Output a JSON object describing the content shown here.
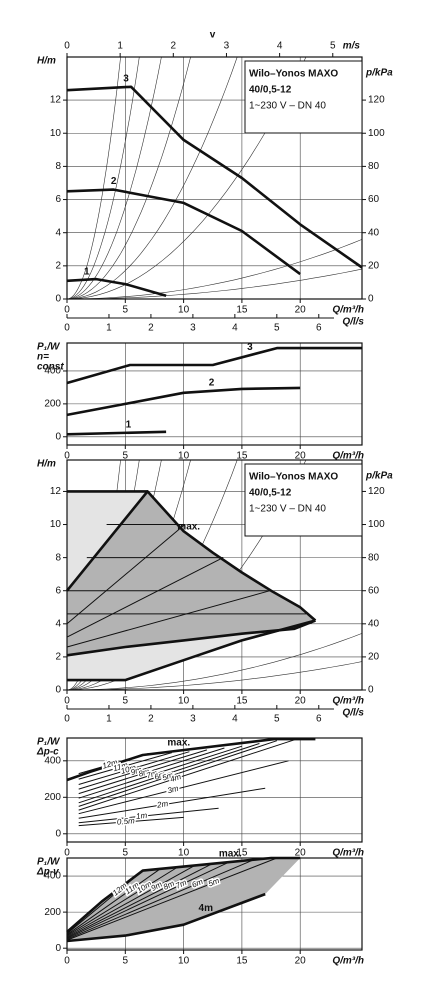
{
  "chart_data": [
    {
      "type": "line",
      "y_label": [
        "H/m"
      ],
      "y2_label": "p/kPa",
      "x_label": "Q/m³/h",
      "x2_label": "v",
      "x2_unit": "m/s",
      "x3_label": "Q/l/s",
      "info": [
        "Wilo–Yonos MAXO",
        "40/0,5-12",
        "1~230 V – DN 40"
      ],
      "xlim": [
        0,
        25.3
      ],
      "xticks": [
        0,
        5,
        10,
        15,
        20
      ],
      "ylim": [
        0,
        14.6
      ],
      "yticks": [
        0,
        2,
        4,
        6,
        8,
        10,
        12
      ],
      "y2lim": [
        0,
        146
      ],
      "y2ticks": [
        0,
        20,
        40,
        60,
        80,
        100,
        120
      ],
      "x2lim": [
        0,
        5.55
      ],
      "x2ticks": [
        0,
        1,
        2,
        3,
        4,
        5
      ],
      "x3lim": [
        0,
        7.03
      ],
      "x3ticks": [
        0,
        1,
        2,
        3,
        4,
        5,
        6
      ],
      "grid": true,
      "series": [
        {
          "name": "1",
          "color": "#111111",
          "style": "thick",
          "x": [
            0,
            2.5,
            5,
            8.5
          ],
          "values": [
            1.1,
            1.2,
            0.9,
            0.2
          ]
        },
        {
          "name": "2",
          "color": "#111111",
          "style": "thick",
          "x": [
            0,
            4,
            10,
            15,
            20
          ],
          "values": [
            6.5,
            6.6,
            5.8,
            4.1,
            1.5
          ]
        },
        {
          "name": "3",
          "color": "#111111",
          "style": "thick",
          "x": [
            0,
            5.5,
            10,
            15,
            20,
            25.3
          ],
          "values": [
            12.6,
            12.8,
            9.6,
            7.3,
            4.5,
            1.9
          ]
        }
      ]
    },
    {
      "type": "line",
      "y_label": [
        "P₁/W",
        "n=",
        "const"
      ],
      "x_label": "Q/m³/h",
      "xlim": [
        0,
        25.3
      ],
      "xticks": [
        0,
        5,
        10,
        15,
        20
      ],
      "ylim": [
        -50,
        570
      ],
      "yticks": [
        0,
        200,
        400
      ],
      "grid": true,
      "series": [
        {
          "name": "1",
          "color": "#111111",
          "style": "thick",
          "x": [
            0,
            8.5
          ],
          "values": [
            15,
            30
          ]
        },
        {
          "name": "2",
          "color": "#111111",
          "style": "thick",
          "x": [
            0,
            5,
            10,
            15,
            20
          ],
          "values": [
            133,
            200,
            267,
            291,
            297
          ]
        },
        {
          "name": "3",
          "color": "#111111",
          "style": "thick",
          "x": [
            0,
            5.4,
            12.5,
            18,
            25.3
          ],
          "values": [
            327,
            436,
            436,
            539,
            539
          ]
        }
      ]
    },
    {
      "type": "line",
      "y_label": [
        "H/m"
      ],
      "y2_label": "p/kPa",
      "x_label": "Q/m³/h",
      "x3_label": "Q/l/s",
      "info": [
        "Wilo–Yonos MAXO",
        "40/0,5-12",
        "1~230 V – DN 40"
      ],
      "xlim": [
        0,
        25.3
      ],
      "xticks": [
        0,
        5,
        10,
        15,
        20
      ],
      "ylim": [
        0,
        13.9
      ],
      "yticks": [
        0,
        2,
        4,
        6,
        8,
        10,
        12
      ],
      "y2lim": [
        0,
        139
      ],
      "y2ticks": [
        0,
        20,
        40,
        60,
        80,
        100,
        120
      ],
      "x3lim": [
        0,
        7.03
      ],
      "x3ticks": [
        0,
        1,
        2,
        3,
        4,
        5,
        6
      ],
      "grid": true,
      "series": [
        {
          "color": "#e4e4e4",
          "style": "area",
          "x": [
            0,
            6.9,
            10,
            12.5,
            15,
            17.5,
            20,
            21.3,
            15,
            10,
            5,
            0
          ],
          "values": [
            12,
            12,
            9.6,
            8.3,
            7.1,
            6,
            5,
            4.2,
            3,
            1.8,
            0.6,
            0.6
          ]
        },
        {
          "color": "#b3b3b3",
          "style": "area",
          "x": [
            0,
            6.9,
            10,
            12.5,
            15,
            17.5,
            20,
            21.3,
            19.5,
            15,
            10,
            5,
            0
          ],
          "values": [
            6,
            12,
            9.6,
            8.3,
            7.1,
            6,
            5,
            4.2,
            3.7,
            3.4,
            3,
            2.6,
            2.1
          ]
        },
        {
          "color": "#111111",
          "style": "thin",
          "x": [
            3.4,
            10.1
          ],
          "values": [
            10,
            10
          ]
        },
        {
          "color": "#111111",
          "style": "thin",
          "x": [
            1.7,
            13.4
          ],
          "values": [
            8,
            8
          ]
        },
        {
          "color": "#111111",
          "style": "thin",
          "x": [
            0,
            17.4
          ],
          "values": [
            6,
            6
          ]
        },
        {
          "color": "#111111",
          "style": "thin",
          "x": [
            0,
            20.5
          ],
          "values": [
            4.6,
            4.6
          ]
        },
        {
          "color": "#111111",
          "style": "thin",
          "x": [
            0,
            10.1
          ],
          "values": [
            4,
            10
          ]
        },
        {
          "color": "#111111",
          "style": "thin",
          "x": [
            0,
            13.4
          ],
          "values": [
            3.2,
            8
          ]
        },
        {
          "color": "#111111",
          "style": "thin",
          "x": [
            0,
            17.4
          ],
          "values": [
            2.6,
            6
          ]
        },
        {
          "color": "#111111",
          "style": "thick",
          "x": [
            0,
            6.9
          ],
          "values": [
            12,
            12
          ]
        },
        {
          "name": "max.",
          "color": "#111111",
          "style": "thick",
          "x": [
            0,
            6.9,
            10,
            12.5,
            15,
            17.5,
            20,
            21.3
          ],
          "values": [
            6,
            12,
            9.6,
            8.3,
            7.1,
            6,
            5,
            4.2
          ]
        },
        {
          "color": "#111111",
          "style": "thick",
          "x": [
            21.3,
            19.5,
            15,
            10,
            5,
            0
          ],
          "values": [
            4.2,
            3.7,
            3.4,
            3,
            2.6,
            2.1
          ]
        },
        {
          "color": "#111111",
          "style": "thick",
          "x": [
            0,
            5,
            10,
            15,
            21.3
          ],
          "values": [
            0.6,
            0.6,
            1.8,
            3,
            4.2
          ]
        }
      ]
    },
    {
      "type": "line",
      "y_label": [
        "P₁/W",
        "Δp-c"
      ],
      "x_label": "Q/m³/h",
      "xlim": [
        0,
        25.3
      ],
      "xticks": [
        0,
        5,
        10,
        15,
        20
      ],
      "ylim": [
        -45,
        525
      ],
      "yticks": [
        0,
        200,
        400
      ],
      "grid": true,
      "series": [
        {
          "name": "max.",
          "color": "#111111",
          "style": "thick",
          "x": [
            0,
            2,
            6.5,
            17.8,
            21.3
          ],
          "values": [
            295,
            340,
            432,
            519,
            519
          ]
        },
        {
          "name": "12m",
          "color": "#111111",
          "style": "thin",
          "x": [
            1,
            7
          ],
          "values": [
            330,
            440
          ]
        },
        {
          "name": "11m",
          "color": "#111111",
          "style": "thin",
          "x": [
            1,
            9
          ],
          "values": [
            300,
            445
          ]
        },
        {
          "name": "10m",
          "color": "#111111",
          "style": "thin",
          "x": [
            1,
            10.5
          ],
          "values": [
            270,
            450
          ]
        },
        {
          "name": "9m",
          "color": "#111111",
          "style": "thin",
          "x": [
            1,
            12
          ],
          "values": [
            245,
            460
          ]
        },
        {
          "name": "8m",
          "color": "#111111",
          "style": "thin",
          "x": [
            1,
            13.5
          ],
          "values": [
            220,
            470
          ]
        },
        {
          "name": "7m",
          "color": "#111111",
          "style": "thin",
          "x": [
            1,
            15
          ],
          "values": [
            195,
            480
          ]
        },
        {
          "name": "6m",
          "color": "#111111",
          "style": "thin",
          "x": [
            1,
            16.5
          ],
          "values": [
            170,
            495
          ]
        },
        {
          "name": "5m",
          "color": "#111111",
          "style": "thin",
          "x": [
            1,
            18
          ],
          "values": [
            150,
            510
          ]
        },
        {
          "name": "4m",
          "color": "#111111",
          "style": "thin",
          "x": [
            1,
            19.5
          ],
          "values": [
            130,
            515
          ]
        },
        {
          "name": "3m",
          "color": "#111111",
          "style": "thin",
          "x": [
            1,
            19
          ],
          "values": [
            110,
            400
          ]
        },
        {
          "name": "2m",
          "color": "#111111",
          "style": "thin",
          "x": [
            1,
            17
          ],
          "values": [
            85,
            250
          ]
        },
        {
          "name": "1m",
          "color": "#111111",
          "style": "thin",
          "x": [
            1,
            13
          ],
          "values": [
            60,
            140
          ]
        },
        {
          "name": "0.5m",
          "color": "#111111",
          "style": "thin",
          "x": [
            1,
            10
          ],
          "values": [
            45,
            90
          ]
        }
      ]
    },
    {
      "type": "line",
      "y_label": [
        "P₁/W",
        "Δp-v"
      ],
      "x_label": "Q/m³/h",
      "xlim": [
        0,
        25.3
      ],
      "xticks": [
        0,
        5,
        10,
        15,
        20
      ],
      "ylim": [
        -10,
        500
      ],
      "yticks": [
        0,
        200,
        400
      ],
      "grid": true,
      "series": [
        {
          "color": "#b3b3b3",
          "style": "area",
          "x": [
            0,
            3,
            6.5,
            17.5,
            20,
            17,
            10,
            5,
            0
          ],
          "values": [
            90,
            260,
            430,
            500,
            500,
            300,
            130,
            70,
            40
          ]
        },
        {
          "name": "max.",
          "color": "#111111",
          "style": "thick",
          "x": [
            0,
            3,
            6.5,
            17.5,
            20
          ],
          "values": [
            90,
            260,
            430,
            500,
            500
          ]
        },
        {
          "name": "12m",
          "color": "#111111",
          "style": "thin",
          "x": [
            0,
            6.5
          ],
          "values": [
            80,
            430
          ]
        },
        {
          "name": "11m",
          "color": "#111111",
          "style": "thin",
          "x": [
            0,
            8
          ],
          "values": [
            75,
            440
          ]
        },
        {
          "name": "10m",
          "color": "#111111",
          "style": "thin",
          "x": [
            0,
            9.5
          ],
          "values": [
            70,
            450
          ]
        },
        {
          "name": "9m",
          "color": "#111111",
          "style": "thin",
          "x": [
            0,
            11
          ],
          "values": [
            65,
            460
          ]
        },
        {
          "name": "8m",
          "color": "#111111",
          "style": "thin",
          "x": [
            0,
            12.5
          ],
          "values": [
            60,
            470
          ]
        },
        {
          "name": "7m",
          "color": "#111111",
          "style": "thin",
          "x": [
            0,
            14
          ],
          "values": [
            55,
            480
          ]
        },
        {
          "name": "6m",
          "color": "#111111",
          "style": "thin",
          "x": [
            0,
            16
          ],
          "values": [
            50,
            490
          ]
        },
        {
          "name": "5m",
          "color": "#111111",
          "style": "thin",
          "x": [
            0,
            18
          ],
          "values": [
            45,
            500
          ]
        },
        {
          "name": "4m",
          "color": "#111111",
          "style": "thick",
          "x": [
            0,
            5,
            10,
            17
          ],
          "values": [
            40,
            70,
            130,
            300
          ]
        }
      ]
    }
  ]
}
